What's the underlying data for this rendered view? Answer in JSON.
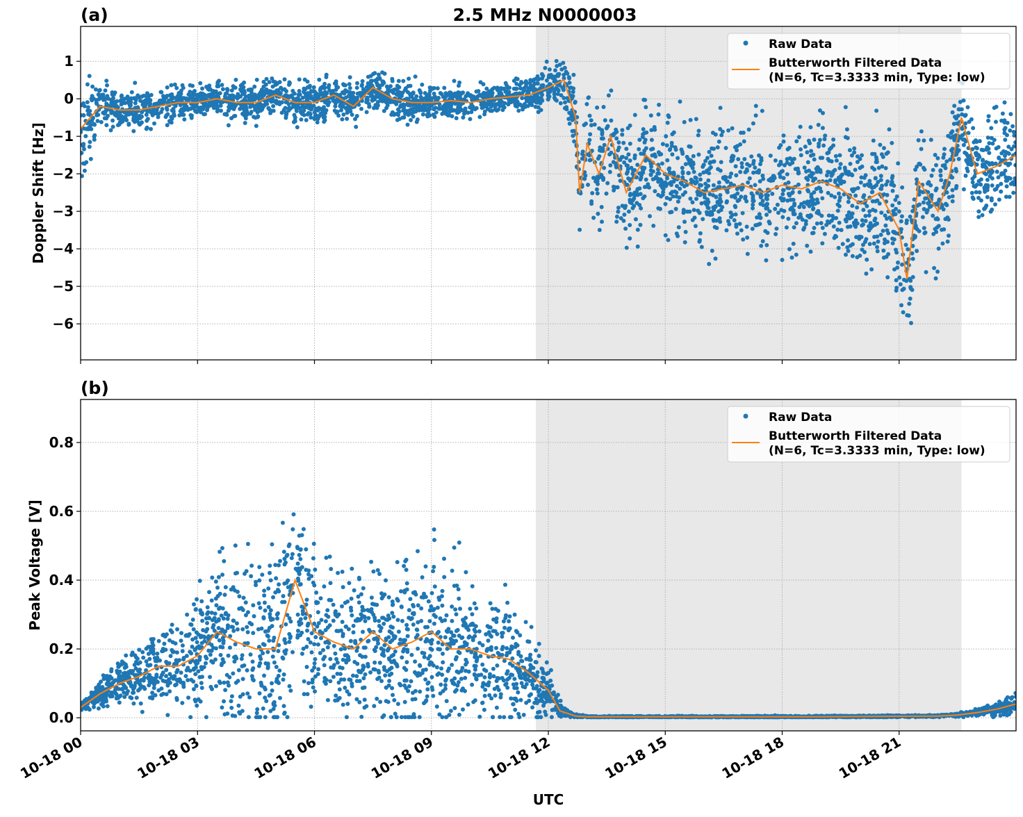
{
  "suptitle": "2.5 MHz N0000003",
  "chart_data": [
    {
      "type": "scatter",
      "panel_label": "(a)",
      "xlabel": "",
      "ylabel": "Doppler Shift [Hz]",
      "xlim_hours": [
        0,
        24
      ],
      "ylim": [
        -6.96,
        1.93
      ],
      "yticks": [
        1,
        0,
        -1,
        -2,
        -3,
        -4,
        -5,
        -6
      ],
      "ytick_labels": [
        "1",
        "0",
        "−1",
        "−2",
        "−3",
        "−4",
        "−5",
        "−6"
      ],
      "grid": true,
      "legend_position": "top-right",
      "shaded_region_hours": [
        11.68,
        22.6
      ],
      "legend": {
        "raw": "Raw Data",
        "filtered_line1": "Butterworth Filtered Data",
        "filtered_line2": "(N=6, Tc=3.3333 min, Type: low)"
      },
      "filtered": {
        "x": [
          0,
          0.5,
          1,
          1.5,
          2,
          2.5,
          3,
          3.5,
          4,
          4.5,
          5,
          5.5,
          6,
          6.5,
          7,
          7.5,
          8,
          8.5,
          9,
          9.5,
          10,
          10.5,
          11,
          11.5,
          12,
          12.4,
          12.7,
          12.8,
          13,
          13.3,
          13.6,
          14,
          14.5,
          15,
          15.5,
          16,
          16.5,
          17,
          17.5,
          18,
          18.5,
          19,
          19.5,
          20,
          20.5,
          21,
          21.2,
          21.5,
          22,
          22.3,
          22.6,
          23,
          23.5,
          24
        ],
        "y": [
          -0.8,
          -0.2,
          -0.3,
          -0.3,
          -0.2,
          -0.1,
          -0.1,
          0.0,
          -0.1,
          -0.1,
          0.1,
          -0.1,
          -0.1,
          0.1,
          -0.2,
          0.3,
          0.0,
          -0.1,
          -0.1,
          -0.05,
          -0.1,
          0.0,
          0.05,
          0.1,
          0.3,
          0.5,
          -0.5,
          -2.5,
          -1.2,
          -2.0,
          -1.0,
          -2.5,
          -1.5,
          -2.0,
          -2.2,
          -2.5,
          -2.4,
          -2.3,
          -2.5,
          -2.3,
          -2.4,
          -2.2,
          -2.4,
          -2.8,
          -2.5,
          -3.5,
          -4.8,
          -2.2,
          -3.0,
          -2.0,
          -0.5,
          -2.0,
          -1.8,
          -1.5
        ]
      },
      "raw_spread": {
        "x": [
          0,
          0.5,
          1,
          3,
          6,
          9,
          11,
          12,
          12.7,
          13,
          16,
          19,
          20,
          21,
          21.3,
          22,
          22.6,
          24
        ],
        "half_width": [
          1.3,
          0.6,
          0.5,
          0.45,
          0.5,
          0.45,
          0.35,
          0.5,
          0.8,
          1.5,
          1.5,
          1.6,
          1.7,
          1.9,
          1.8,
          1.6,
          1.3,
          1.4
        ]
      },
      "color_raw": "#1f77b4",
      "color_filtered": "#ff7f0e"
    },
    {
      "type": "scatter",
      "panel_label": "(b)",
      "xlabel": "UTC",
      "ylabel": "Peak Voltage [V]",
      "xlim_hours": [
        0,
        24
      ],
      "ylim": [
        -0.038,
        0.925
      ],
      "yticks": [
        0.0,
        0.2,
        0.4,
        0.6,
        0.8
      ],
      "ytick_labels": [
        "0.0",
        "0.2",
        "0.4",
        "0.6",
        "0.8"
      ],
      "xticks_hours": [
        0,
        3,
        6,
        9,
        12,
        15,
        18,
        21
      ],
      "xtick_labels": [
        "10-18 00",
        "10-18 03",
        "10-18 06",
        "10-18 09",
        "10-18 12",
        "10-18 15",
        "10-18 18",
        "10-18 21"
      ],
      "grid": true,
      "legend_position": "top-right",
      "shaded_region_hours": [
        11.68,
        22.6
      ],
      "legend": {
        "raw": "Raw Data",
        "filtered_line1": "Butterworth Filtered Data",
        "filtered_line2": "(N=6, Tc=3.3333 min, Type: low)"
      },
      "filtered": {
        "x": [
          0,
          0.5,
          1,
          1.5,
          2,
          2.5,
          3,
          3.5,
          4,
          4.5,
          5,
          5.5,
          6,
          6.5,
          7,
          7.5,
          8,
          8.5,
          9,
          9.5,
          10,
          10.5,
          11,
          11.5,
          12,
          12.3,
          12.7,
          13,
          16,
          19,
          22,
          22.5,
          23,
          23.5,
          24
        ],
        "y": [
          0.03,
          0.07,
          0.1,
          0.12,
          0.15,
          0.15,
          0.18,
          0.25,
          0.22,
          0.2,
          0.2,
          0.4,
          0.25,
          0.22,
          0.2,
          0.25,
          0.2,
          0.22,
          0.25,
          0.2,
          0.2,
          0.18,
          0.17,
          0.13,
          0.08,
          0.02,
          0.005,
          0.003,
          0.003,
          0.003,
          0.005,
          0.008,
          0.015,
          0.025,
          0.04
        ]
      },
      "raw_spread": {
        "x": [
          0,
          1,
          3,
          4,
          5.5,
          6,
          9,
          11,
          11.6,
          12,
          12.5,
          13,
          22,
          23,
          24
        ],
        "half_width": [
          0.01,
          0.06,
          0.15,
          0.25,
          0.3,
          0.2,
          0.25,
          0.15,
          0.12,
          0.06,
          0.01,
          0.002,
          0.003,
          0.01,
          0.03
        ]
      },
      "color_raw": "#1f77b4",
      "color_filtered": "#ff7f0e"
    }
  ]
}
